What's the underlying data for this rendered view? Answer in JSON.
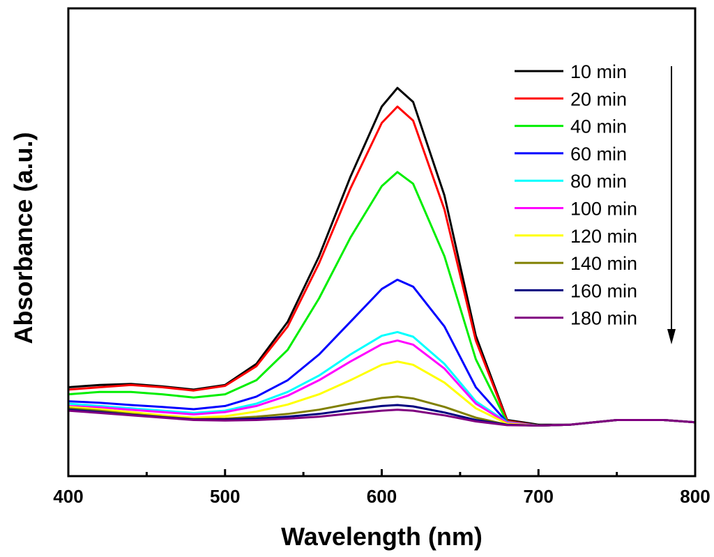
{
  "chart_data": {
    "type": "line",
    "xlabel": "Wavelength (nm)",
    "ylabel": "Absorbance (a.u.)",
    "xlim": [
      400,
      800
    ],
    "ylim": [
      0,
      1
    ],
    "x_ticks": [
      "400",
      "500",
      "600",
      "700",
      "800"
    ],
    "y_ticks_shown": false,
    "grid": false,
    "legend_position": "top-right",
    "annotation": "downward arrow indicating decreasing absorbance with time",
    "series": [
      {
        "name": "10 min",
        "color": "#000000",
        "values": [
          [
            400,
            0.19
          ],
          [
            420,
            0.195
          ],
          [
            440,
            0.197
          ],
          [
            460,
            0.192
          ],
          [
            480,
            0.185
          ],
          [
            500,
            0.195
          ],
          [
            520,
            0.24
          ],
          [
            540,
            0.33
          ],
          [
            560,
            0.47
          ],
          [
            580,
            0.64
          ],
          [
            600,
            0.79
          ],
          [
            610,
            0.83
          ],
          [
            620,
            0.8
          ],
          [
            640,
            0.6
          ],
          [
            660,
            0.3
          ],
          [
            680,
            0.12
          ],
          [
            700,
            0.11
          ],
          [
            720,
            0.11
          ],
          [
            750,
            0.12
          ],
          [
            780,
            0.12
          ],
          [
            800,
            0.115
          ]
        ]
      },
      {
        "name": "20 min",
        "color": "#ff0000",
        "values": [
          [
            400,
            0.185
          ],
          [
            420,
            0.19
          ],
          [
            440,
            0.195
          ],
          [
            460,
            0.19
          ],
          [
            480,
            0.183
          ],
          [
            500,
            0.193
          ],
          [
            520,
            0.235
          ],
          [
            540,
            0.32
          ],
          [
            560,
            0.455
          ],
          [
            580,
            0.615
          ],
          [
            600,
            0.755
          ],
          [
            610,
            0.79
          ],
          [
            620,
            0.76
          ],
          [
            640,
            0.57
          ],
          [
            660,
            0.29
          ],
          [
            680,
            0.118
          ],
          [
            700,
            0.108
          ],
          [
            720,
            0.11
          ],
          [
            750,
            0.12
          ],
          [
            780,
            0.12
          ],
          [
            800,
            0.115
          ]
        ]
      },
      {
        "name": "40 min",
        "color": "#00ee00",
        "values": [
          [
            400,
            0.175
          ],
          [
            420,
            0.18
          ],
          [
            440,
            0.18
          ],
          [
            460,
            0.175
          ],
          [
            480,
            0.168
          ],
          [
            500,
            0.175
          ],
          [
            520,
            0.205
          ],
          [
            540,
            0.27
          ],
          [
            560,
            0.38
          ],
          [
            580,
            0.51
          ],
          [
            600,
            0.62
          ],
          [
            610,
            0.65
          ],
          [
            620,
            0.625
          ],
          [
            640,
            0.47
          ],
          [
            660,
            0.25
          ],
          [
            680,
            0.115
          ],
          [
            700,
            0.108
          ],
          [
            720,
            0.11
          ],
          [
            750,
            0.12
          ],
          [
            780,
            0.12
          ],
          [
            800,
            0.115
          ]
        ]
      },
      {
        "name": "60 min",
        "color": "#0000ff",
        "values": [
          [
            400,
            0.16
          ],
          [
            420,
            0.157
          ],
          [
            440,
            0.152
          ],
          [
            460,
            0.148
          ],
          [
            480,
            0.143
          ],
          [
            500,
            0.15
          ],
          [
            520,
            0.17
          ],
          [
            540,
            0.205
          ],
          [
            560,
            0.26
          ],
          [
            580,
            0.33
          ],
          [
            600,
            0.4
          ],
          [
            610,
            0.42
          ],
          [
            620,
            0.405
          ],
          [
            640,
            0.32
          ],
          [
            660,
            0.19
          ],
          [
            680,
            0.115
          ],
          [
            700,
            0.108
          ],
          [
            720,
            0.11
          ],
          [
            750,
            0.12
          ],
          [
            780,
            0.12
          ],
          [
            800,
            0.115
          ]
        ]
      },
      {
        "name": "80 min",
        "color": "#00ffff",
        "values": [
          [
            400,
            0.155
          ],
          [
            420,
            0.15
          ],
          [
            440,
            0.145
          ],
          [
            460,
            0.14
          ],
          [
            480,
            0.135
          ],
          [
            500,
            0.14
          ],
          [
            520,
            0.155
          ],
          [
            540,
            0.18
          ],
          [
            560,
            0.215
          ],
          [
            580,
            0.26
          ],
          [
            600,
            0.3
          ],
          [
            610,
            0.308
          ],
          [
            620,
            0.298
          ],
          [
            640,
            0.24
          ],
          [
            660,
            0.16
          ],
          [
            680,
            0.115
          ],
          [
            700,
            0.108
          ],
          [
            720,
            0.11
          ],
          [
            750,
            0.12
          ],
          [
            780,
            0.12
          ],
          [
            800,
            0.115
          ]
        ]
      },
      {
        "name": "100 min",
        "color": "#ff00ff",
        "values": [
          [
            400,
            0.15
          ],
          [
            420,
            0.147
          ],
          [
            440,
            0.142
          ],
          [
            460,
            0.137
          ],
          [
            480,
            0.132
          ],
          [
            500,
            0.137
          ],
          [
            520,
            0.15
          ],
          [
            540,
            0.172
          ],
          [
            560,
            0.205
          ],
          [
            580,
            0.245
          ],
          [
            600,
            0.282
          ],
          [
            610,
            0.29
          ],
          [
            620,
            0.281
          ],
          [
            640,
            0.23
          ],
          [
            660,
            0.155
          ],
          [
            680,
            0.114
          ],
          [
            700,
            0.108
          ],
          [
            720,
            0.11
          ],
          [
            750,
            0.12
          ],
          [
            780,
            0.12
          ],
          [
            800,
            0.115
          ]
        ]
      },
      {
        "name": "120 min",
        "color": "#ffff00",
        "values": [
          [
            400,
            0.148
          ],
          [
            420,
            0.143
          ],
          [
            440,
            0.137
          ],
          [
            460,
            0.13
          ],
          [
            480,
            0.125
          ],
          [
            500,
            0.128
          ],
          [
            520,
            0.138
          ],
          [
            540,
            0.153
          ],
          [
            560,
            0.175
          ],
          [
            580,
            0.205
          ],
          [
            600,
            0.238
          ],
          [
            610,
            0.245
          ],
          [
            620,
            0.238
          ],
          [
            640,
            0.2
          ],
          [
            660,
            0.145
          ],
          [
            680,
            0.112
          ],
          [
            700,
            0.108
          ],
          [
            720,
            0.11
          ],
          [
            750,
            0.12
          ],
          [
            780,
            0.12
          ],
          [
            800,
            0.115
          ]
        ]
      },
      {
        "name": "140 min",
        "color": "#808000",
        "values": [
          [
            400,
            0.145
          ],
          [
            420,
            0.14
          ],
          [
            440,
            0.133
          ],
          [
            460,
            0.127
          ],
          [
            480,
            0.122
          ],
          [
            500,
            0.123
          ],
          [
            520,
            0.127
          ],
          [
            540,
            0.133
          ],
          [
            560,
            0.142
          ],
          [
            580,
            0.155
          ],
          [
            600,
            0.167
          ],
          [
            610,
            0.17
          ],
          [
            620,
            0.166
          ],
          [
            640,
            0.148
          ],
          [
            660,
            0.125
          ],
          [
            680,
            0.11
          ],
          [
            700,
            0.108
          ],
          [
            720,
            0.11
          ],
          [
            750,
            0.12
          ],
          [
            780,
            0.12
          ],
          [
            800,
            0.115
          ]
        ]
      },
      {
        "name": "160 min",
        "color": "#000080",
        "values": [
          [
            400,
            0.142
          ],
          [
            420,
            0.137
          ],
          [
            440,
            0.131
          ],
          [
            460,
            0.126
          ],
          [
            480,
            0.121
          ],
          [
            500,
            0.121
          ],
          [
            520,
            0.123
          ],
          [
            540,
            0.127
          ],
          [
            560,
            0.133
          ],
          [
            580,
            0.142
          ],
          [
            600,
            0.15
          ],
          [
            610,
            0.152
          ],
          [
            620,
            0.149
          ],
          [
            640,
            0.136
          ],
          [
            660,
            0.12
          ],
          [
            680,
            0.11
          ],
          [
            700,
            0.108
          ],
          [
            720,
            0.11
          ],
          [
            750,
            0.12
          ],
          [
            780,
            0.12
          ],
          [
            800,
            0.115
          ]
        ]
      },
      {
        "name": "180 min",
        "color": "#800080",
        "values": [
          [
            400,
            0.14
          ],
          [
            420,
            0.135
          ],
          [
            440,
            0.13
          ],
          [
            460,
            0.125
          ],
          [
            480,
            0.12
          ],
          [
            500,
            0.119
          ],
          [
            520,
            0.12
          ],
          [
            540,
            0.123
          ],
          [
            560,
            0.127
          ],
          [
            580,
            0.134
          ],
          [
            600,
            0.14
          ],
          [
            610,
            0.142
          ],
          [
            620,
            0.14
          ],
          [
            640,
            0.13
          ],
          [
            660,
            0.117
          ],
          [
            680,
            0.109
          ],
          [
            700,
            0.108
          ],
          [
            720,
            0.11
          ],
          [
            750,
            0.12
          ],
          [
            780,
            0.12
          ],
          [
            800,
            0.115
          ]
        ]
      }
    ]
  }
}
